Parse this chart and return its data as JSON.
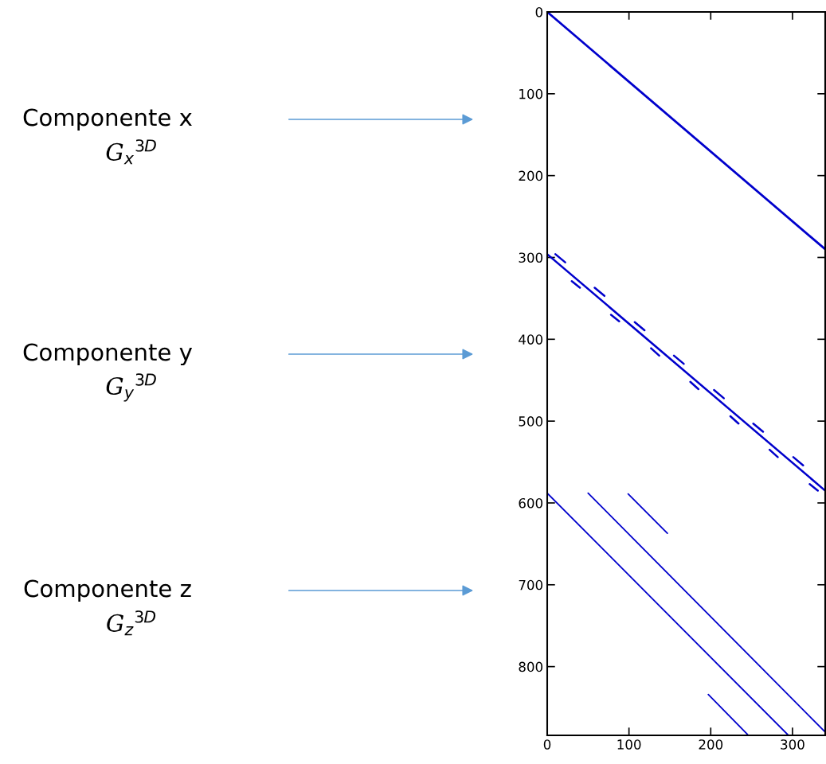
{
  "chart_data": {
    "type": "line",
    "xlim": [
      0,
      340
    ],
    "ylim": [
      884,
      0
    ],
    "xticks": [
      0,
      100,
      200,
      300
    ],
    "yticks": [
      0,
      100,
      200,
      300,
      400,
      500,
      600,
      700,
      800
    ],
    "grid": false,
    "legend": false,
    "marker": "none",
    "line_style": "solid",
    "series": [
      {
        "color": "#0000cc",
        "x": [
          0,
          340
        ],
        "values": [
          0,
          290
        ]
      },
      {
        "color": "#0000cc",
        "x": [
          0,
          340,
          null,
          10,
          22,
          null,
          58,
          70,
          null,
          107,
          119,
          null,
          155,
          167,
          null,
          204,
          216,
          null,
          252,
          264,
          null,
          301,
          313,
          null,
          30,
          40,
          null,
          78,
          88,
          null,
          127,
          137,
          null,
          175,
          185,
          null,
          224,
          234,
          null,
          272,
          282,
          null,
          321,
          331
        ],
        "values": [
          296,
          585,
          null,
          296,
          306,
          null,
          337,
          347,
          null,
          379,
          389,
          null,
          420,
          430,
          null,
          462,
          472,
          null,
          503,
          513,
          null,
          544,
          554,
          null,
          329,
          337,
          null,
          370,
          378,
          null,
          411,
          420,
          null,
          452,
          461,
          null,
          494,
          503,
          null,
          535,
          544,
          null,
          577,
          585
        ]
      },
      {
        "color": "#0000cc",
        "x": [
          0,
          295,
          null,
          50,
          340,
          null,
          99,
          147,
          null,
          197,
          245
        ],
        "values": [
          588,
          884,
          null,
          588,
          880,
          null,
          589,
          637,
          null,
          834,
          883
        ]
      }
    ],
    "annotations": [
      "Componente x",
      "G$_{x}$$^{3D}$",
      "Componente y",
      "G$_{y}$$^{3D}$",
      "Componente z",
      "G$_{z}$$^{3D}$"
    ]
  }
}
